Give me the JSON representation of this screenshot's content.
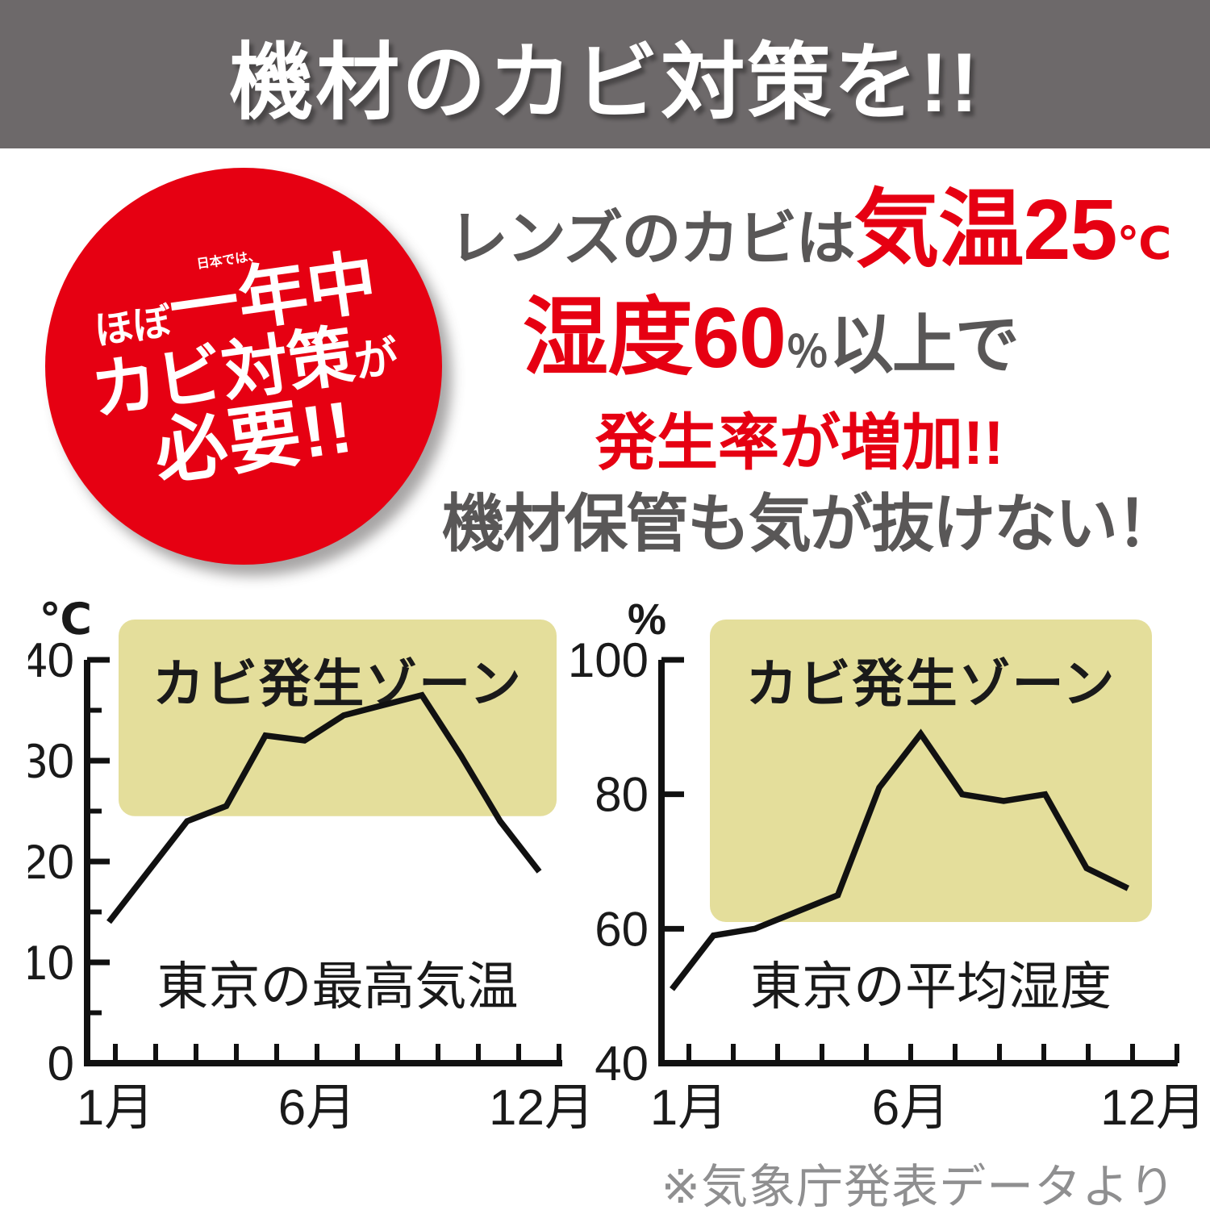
{
  "banner": {
    "title": "機材のカビ対策を!!"
  },
  "badge": {
    "line1": "日本では、",
    "line2_small": "ほぼ",
    "line2_big": "一年中",
    "line3_big": "カビ対策",
    "line3_small": "が",
    "line4": "必要!!"
  },
  "headline": {
    "l1_gray": "レンズのカビは",
    "l1_red": "気温25",
    "l1_unit": "℃",
    "l2_red": "湿度60",
    "l2_pct": "％",
    "l2_gray": "以上で",
    "l3_red": "発生率が増加!!",
    "l4_gray": "機材保管も気が抜けない！"
  },
  "footnote": "※気象庁発表データより",
  "colors": {
    "accent_red": "#e60012",
    "banner_bg": "#6d696a",
    "text_gray": "#595757",
    "note_gray": "#8f8f90",
    "zone_fill": "#e4de9b",
    "zone_text": "#7b7122",
    "line_black": "#111111"
  },
  "chart_data": [
    {
      "type": "line",
      "title": "東京の最高気温",
      "unit": "℃",
      "x_tick_count": 12,
      "x_labels": [
        {
          "month": 1,
          "label": "1月"
        },
        {
          "month": 6,
          "label": "6月"
        },
        {
          "month": 12,
          "label": "12月"
        }
      ],
      "months": [
        1,
        2,
        3,
        4,
        5,
        6,
        7,
        8,
        9,
        10,
        11,
        12
      ],
      "values": [
        14,
        19,
        24,
        25.5,
        32.5,
        32,
        34.5,
        35.5,
        36.5,
        30.5,
        24,
        19
      ],
      "ylim": [
        0,
        40
      ],
      "y_major_ticks": [
        0,
        10,
        20,
        30,
        40
      ],
      "y_minor_ticks": [
        5,
        15,
        25,
        35
      ],
      "grid": false,
      "zone": {
        "label": "カビ発生ゾーン",
        "from": 24.5
      }
    },
    {
      "type": "line",
      "title": "東京の平均湿度",
      "unit": "%",
      "x_tick_count": 12,
      "x_labels": [
        {
          "month": 1,
          "label": "1月"
        },
        {
          "month": 6,
          "label": "6月"
        },
        {
          "month": 12,
          "label": "12月"
        }
      ],
      "months": [
        1,
        2,
        3,
        4,
        5,
        6,
        7,
        8,
        9,
        10,
        11,
        12
      ],
      "values": [
        51,
        59,
        60,
        62.5,
        65,
        81,
        89,
        80,
        79,
        80,
        69,
        66
      ],
      "ylim": [
        40,
        100
      ],
      "y_major_ticks": [
        40,
        60,
        80,
        100
      ],
      "y_minor_ticks": [],
      "grid": false,
      "zone": {
        "label": "カビ発生ゾーン",
        "from": 61
      }
    }
  ]
}
